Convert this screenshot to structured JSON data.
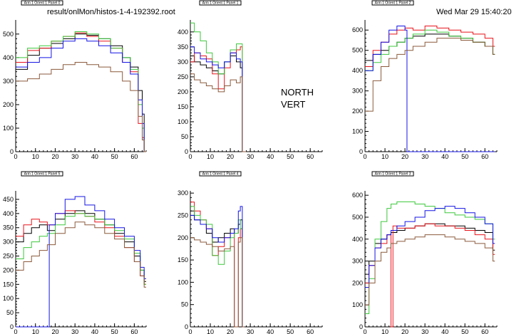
{
  "header": {
    "file": "result/onlMon/histos-1-4-192392.root",
    "timestamp": "Wed Mar 29 15:40:20 2006"
  },
  "annotation": {
    "line1": "NORTH",
    "line2": "VERT"
  },
  "colors": {
    "black": "#000000",
    "red": "#e8121a",
    "green": "#3cc83c",
    "blue": "#1414e6",
    "brown": "#8b5a3c"
  },
  "chart_data": [
    {
      "type": "line",
      "title": "Arm 1 Orient 1 Panel 0",
      "xlim": [
        0,
        66
      ],
      "ylim": [
        0,
        560
      ],
      "xticks": [
        0,
        10,
        20,
        30,
        40,
        50,
        60
      ],
      "yticks": [
        0,
        100,
        200,
        300,
        400,
        500
      ],
      "x": [
        0,
        6,
        12,
        18,
        24,
        30,
        36,
        42,
        48,
        54,
        58,
        62,
        64,
        65
      ],
      "series": [
        {
          "color": "black",
          "values": [
            350,
            410,
            440,
            460,
            480,
            500,
            495,
            480,
            450,
            400,
            360,
            260,
            160,
            0
          ]
        },
        {
          "color": "red",
          "values": [
            380,
            430,
            440,
            470,
            490,
            505,
            490,
            470,
            440,
            380,
            340,
            120,
            60,
            0
          ]
        },
        {
          "color": "green",
          "values": [
            400,
            440,
            450,
            470,
            490,
            510,
            500,
            480,
            440,
            400,
            350,
            200,
            100,
            0
          ]
        },
        {
          "color": "blue",
          "values": [
            360,
            380,
            400,
            440,
            470,
            480,
            470,
            450,
            420,
            380,
            330,
            220,
            120,
            0
          ]
        },
        {
          "color": "brown",
          "values": [
            300,
            310,
            330,
            350,
            370,
            380,
            370,
            360,
            340,
            300,
            260,
            150,
            50,
            0
          ]
        }
      ]
    },
    {
      "type": "line",
      "title": "Arm 1 Orient 1 Panel 1",
      "xlim": [
        0,
        66
      ],
      "ylim": [
        0,
        440
      ],
      "xticks": [
        0,
        10,
        20,
        30,
        40,
        50,
        60
      ],
      "yticks": [
        0,
        50,
        100,
        150,
        200,
        250,
        300,
        350,
        400
      ],
      "x": [
        0,
        2,
        5,
        8,
        11,
        14,
        17,
        20,
        23,
        25,
        26,
        27
      ],
      "series": [
        {
          "color": "black",
          "values": [
            320,
            300,
            290,
            280,
            270,
            260,
            300,
            320,
            300,
            280,
            0,
            0
          ]
        },
        {
          "color": "red",
          "values": [
            300,
            330,
            320,
            310,
            260,
            210,
            280,
            330,
            340,
            350,
            0,
            0
          ]
        },
        {
          "color": "green",
          "values": [
            430,
            400,
            370,
            330,
            300,
            260,
            300,
            340,
            360,
            360,
            0,
            0
          ]
        },
        {
          "color": "blue",
          "values": [
            350,
            330,
            310,
            300,
            290,
            280,
            300,
            330,
            310,
            300,
            0,
            0
          ]
        },
        {
          "color": "brown",
          "values": [
            260,
            240,
            230,
            220,
            210,
            200,
            220,
            240,
            230,
            250,
            0,
            0
          ]
        }
      ]
    },
    {
      "type": "line",
      "title": "Arm 1 Orient 1 Panel 2",
      "xlim": [
        0,
        66
      ],
      "ylim": [
        0,
        650
      ],
      "xticks": [
        0,
        10,
        20,
        30,
        40,
        50,
        60
      ],
      "yticks": [
        0,
        100,
        200,
        300,
        400,
        500,
        600
      ],
      "x": [
        0,
        4,
        8,
        12,
        16,
        20,
        21,
        24,
        30,
        36,
        42,
        48,
        54,
        60,
        64
      ],
      "series": [
        {
          "color": "black",
          "values": [
            450,
            480,
            500,
            520,
            540,
            560,
            560,
            570,
            580,
            580,
            570,
            560,
            540,
            520,
            480
          ]
        },
        {
          "color": "red",
          "values": [
            420,
            500,
            540,
            580,
            600,
            610,
            610,
            600,
            620,
            610,
            600,
            590,
            580,
            560,
            520
          ]
        },
        {
          "color": "green",
          "values": [
            400,
            440,
            480,
            520,
            540,
            560,
            560,
            580,
            600,
            590,
            570,
            560,
            540,
            520,
            480
          ]
        },
        {
          "color": "blue",
          "values": [
            400,
            480,
            540,
            600,
            620,
            600,
            0,
            0,
            0,
            0,
            0,
            0,
            0,
            0,
            0
          ]
        },
        {
          "color": "brown",
          "values": [
            200,
            350,
            420,
            460,
            480,
            500,
            500,
            520,
            540,
            560,
            560,
            550,
            540,
            520,
            480
          ]
        }
      ]
    },
    {
      "type": "line",
      "title": "Arm 1 Orient 1 Panel 5",
      "xlim": [
        0,
        66
      ],
      "ylim": [
        0,
        480
      ],
      "xticks": [
        0,
        10,
        20,
        30,
        40,
        50,
        60
      ],
      "yticks": [
        0,
        50,
        100,
        150,
        200,
        250,
        300,
        350,
        400,
        450
      ],
      "x": [
        0,
        4,
        8,
        12,
        16,
        17,
        20,
        25,
        30,
        35,
        40,
        45,
        50,
        55,
        60,
        63,
        65
      ],
      "series": [
        {
          "color": "black",
          "values": [
            300,
            330,
            350,
            360,
            340,
            340,
            380,
            400,
            410,
            400,
            380,
            360,
            330,
            300,
            250,
            200,
            160
          ]
        },
        {
          "color": "red",
          "values": [
            320,
            360,
            380,
            370,
            360,
            360,
            400,
            410,
            400,
            390,
            370,
            350,
            320,
            280,
            230,
            180,
            150
          ]
        },
        {
          "color": "green",
          "values": [
            240,
            280,
            300,
            320,
            330,
            330,
            360,
            390,
            400,
            390,
            380,
            360,
            340,
            310,
            260,
            200,
            150
          ]
        },
        {
          "color": "blue",
          "values": [
            0,
            0,
            0,
            0,
            0,
            360,
            400,
            450,
            460,
            430,
            410,
            380,
            350,
            320,
            270,
            210,
            170
          ]
        },
        {
          "color": "brown",
          "values": [
            200,
            230,
            250,
            270,
            290,
            290,
            330,
            350,
            370,
            360,
            350,
            330,
            310,
            280,
            230,
            180,
            140
          ]
        }
      ]
    },
    {
      "type": "line",
      "title": "Arm 1 Orient 1 Panel 4",
      "xlim": [
        0,
        66
      ],
      "ylim": [
        0,
        305
      ],
      "xticks": [
        0,
        10,
        20,
        30,
        40,
        50,
        60
      ],
      "yticks": [
        0,
        50,
        100,
        150,
        200,
        250,
        300
      ],
      "x": [
        0,
        2,
        5,
        8,
        11,
        14,
        17,
        20,
        22,
        24,
        25,
        26
      ],
      "series": [
        {
          "color": "black",
          "values": [
            260,
            240,
            230,
            210,
            190,
            200,
            210,
            220,
            210,
            230,
            240,
            0
          ]
        },
        {
          "color": "red",
          "values": [
            280,
            260,
            240,
            220,
            160,
            180,
            200,
            210,
            0,
            200,
            220,
            0
          ]
        },
        {
          "color": "green",
          "values": [
            270,
            250,
            240,
            230,
            160,
            140,
            170,
            200,
            210,
            240,
            220,
            0
          ]
        },
        {
          "color": "blue",
          "values": [
            250,
            240,
            230,
            220,
            200,
            190,
            200,
            210,
            220,
            260,
            270,
            0
          ]
        },
        {
          "color": "brown",
          "values": [
            200,
            195,
            190,
            185,
            180,
            170,
            175,
            180,
            0,
            190,
            200,
            0
          ]
        }
      ]
    },
    {
      "type": "line",
      "title": "Arm 1 Orient 1 Panel 3",
      "xlim": [
        0,
        66
      ],
      "ylim": [
        0,
        620
      ],
      "xticks": [
        0,
        10,
        20,
        30,
        40,
        50,
        60
      ],
      "yticks": [
        0,
        100,
        200,
        300,
        400,
        500,
        600
      ],
      "x": [
        0,
        2,
        5,
        8,
        11,
        13,
        14,
        16,
        20,
        25,
        30,
        35,
        40,
        45,
        50,
        55,
        60,
        64
      ],
      "series": [
        {
          "color": "black",
          "values": [
            240,
            300,
            380,
            400,
            420,
            430,
            430,
            440,
            450,
            460,
            470,
            470,
            460,
            460,
            450,
            440,
            430,
            350
          ]
        },
        {
          "color": "red",
          "values": [
            200,
            280,
            360,
            380,
            420,
            0,
            460,
            450,
            450,
            460,
            470,
            460,
            460,
            450,
            440,
            420,
            400,
            330
          ]
        },
        {
          "color": "green",
          "values": [
            60,
            220,
            400,
            480,
            540,
            560,
            560,
            570,
            570,
            560,
            550,
            540,
            520,
            510,
            500,
            490,
            470,
            400
          ]
        },
        {
          "color": "blue",
          "values": [
            180,
            280,
            360,
            400,
            420,
            440,
            440,
            460,
            480,
            500,
            530,
            540,
            550,
            540,
            520,
            500,
            470,
            380
          ]
        },
        {
          "color": "brown",
          "values": [
            100,
            200,
            300,
            340,
            360,
            380,
            380,
            390,
            400,
            410,
            420,
            420,
            410,
            400,
            390,
            380,
            360,
            300
          ]
        }
      ]
    }
  ]
}
